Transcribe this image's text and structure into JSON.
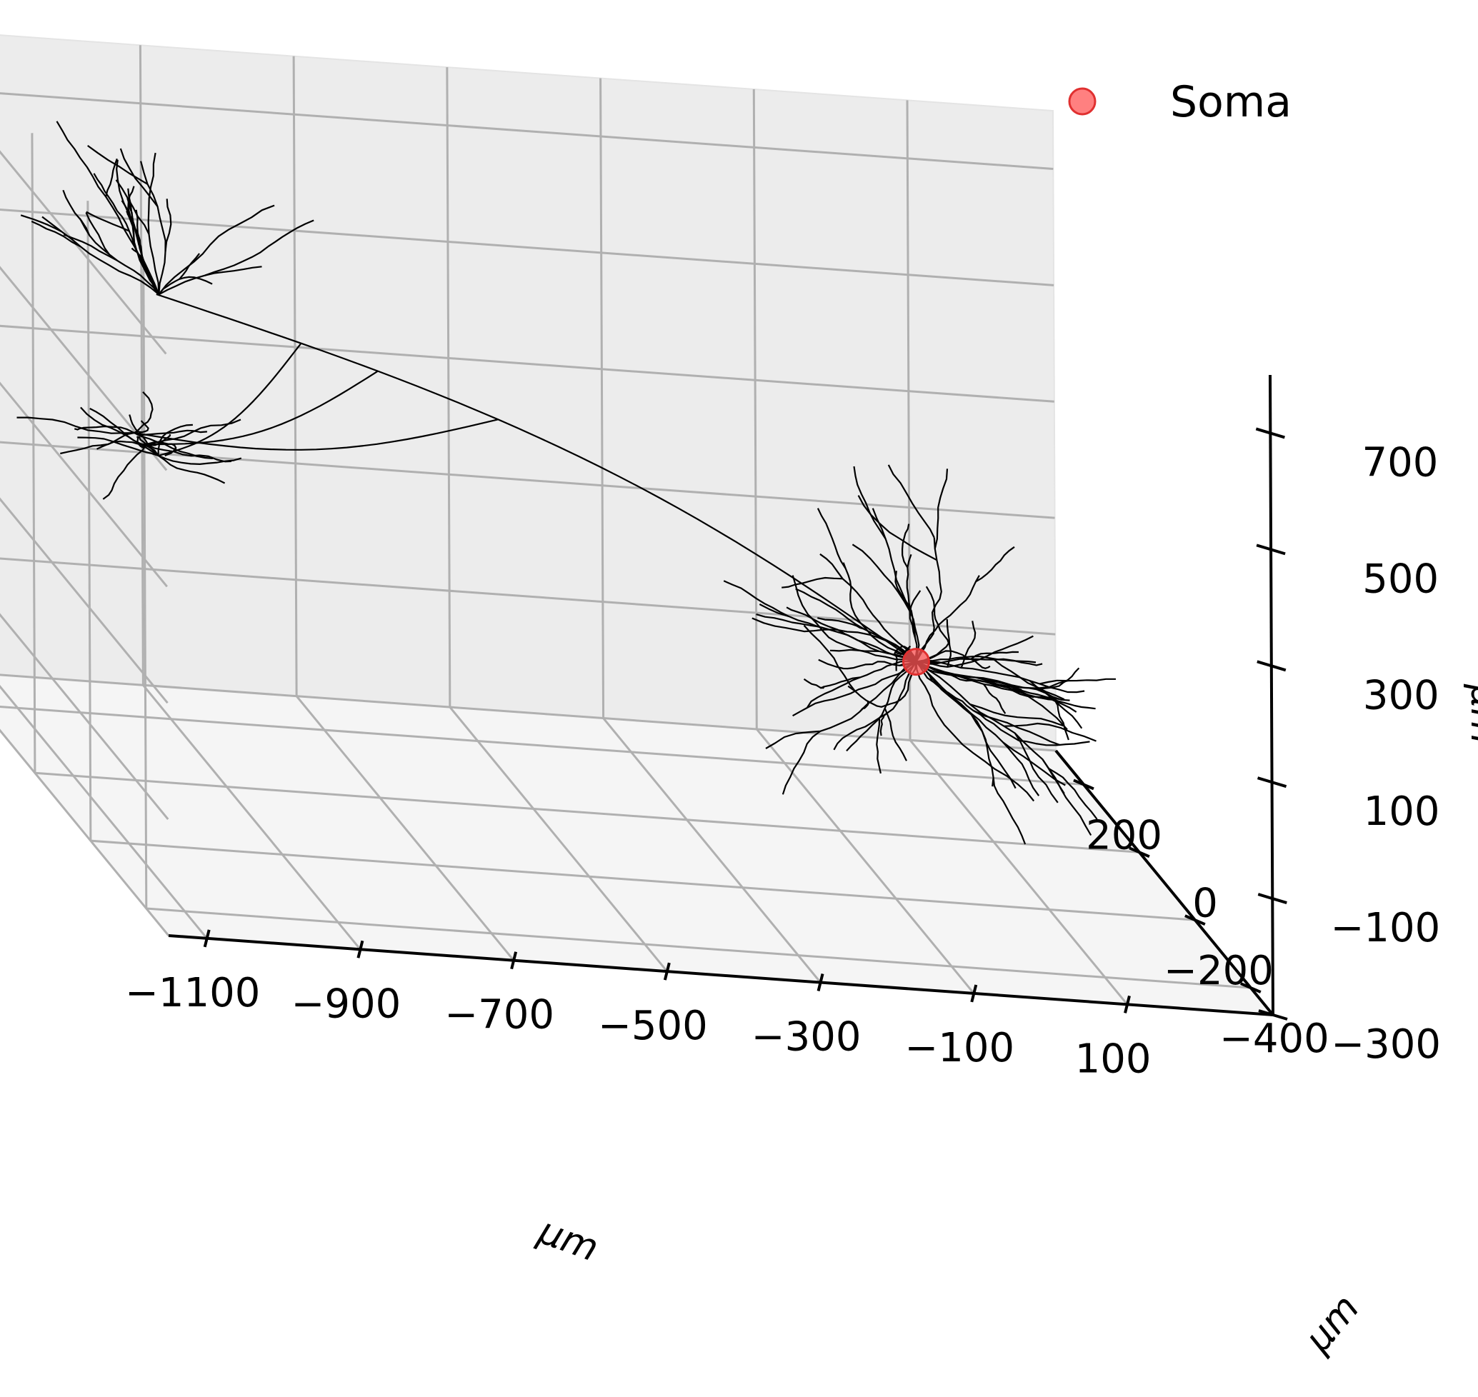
{
  "chart_data": {
    "type": "scatter",
    "projection": "3d",
    "title": "",
    "xlabel": "μm",
    "ylabel": "μm",
    "zlabel": "μm",
    "x_ticks": [
      {
        "value": -1100,
        "label": "−1100"
      },
      {
        "value": -900,
        "label": "−900"
      },
      {
        "value": -700,
        "label": "−700"
      },
      {
        "value": -500,
        "label": "−500"
      },
      {
        "value": -300,
        "label": "−300"
      },
      {
        "value": -100,
        "label": "−100"
      },
      {
        "value": 100,
        "label": "100"
      }
    ],
    "y_ticks": [
      {
        "value": -400,
        "label": "−400"
      },
      {
        "value": -200,
        "label": "−200"
      },
      {
        "value": 0,
        "label": "0"
      },
      {
        "value": 200,
        "label": "200"
      }
    ],
    "z_ticks": [
      {
        "value": -300,
        "label": "−300"
      },
      {
        "value": -100,
        "label": "−100"
      },
      {
        "value": 100,
        "label": "100"
      },
      {
        "value": 300,
        "label": "300"
      },
      {
        "value": 500,
        "label": "500"
      },
      {
        "value": 700,
        "label": "700"
      }
    ],
    "xlim": [
      -1150,
      290
    ],
    "ylim": [
      -480,
      300
    ],
    "zlim": [
      -300,
      800
    ],
    "grid": true,
    "legend": {
      "position": "top-right",
      "entries": [
        {
          "label": "Soma",
          "color": "#ff5555",
          "marker": "circle"
        }
      ]
    },
    "series": [
      {
        "name": "Soma",
        "type": "scatter",
        "color": "#ff5555",
        "points": [
          {
            "x": 0,
            "y": 0,
            "z": 0
          }
        ]
      }
    ],
    "morphology": {
      "type": "line",
      "color": "#000000",
      "description_free": true,
      "soma": {
        "x": 0,
        "y": 0,
        "z": 0
      }
    }
  }
}
